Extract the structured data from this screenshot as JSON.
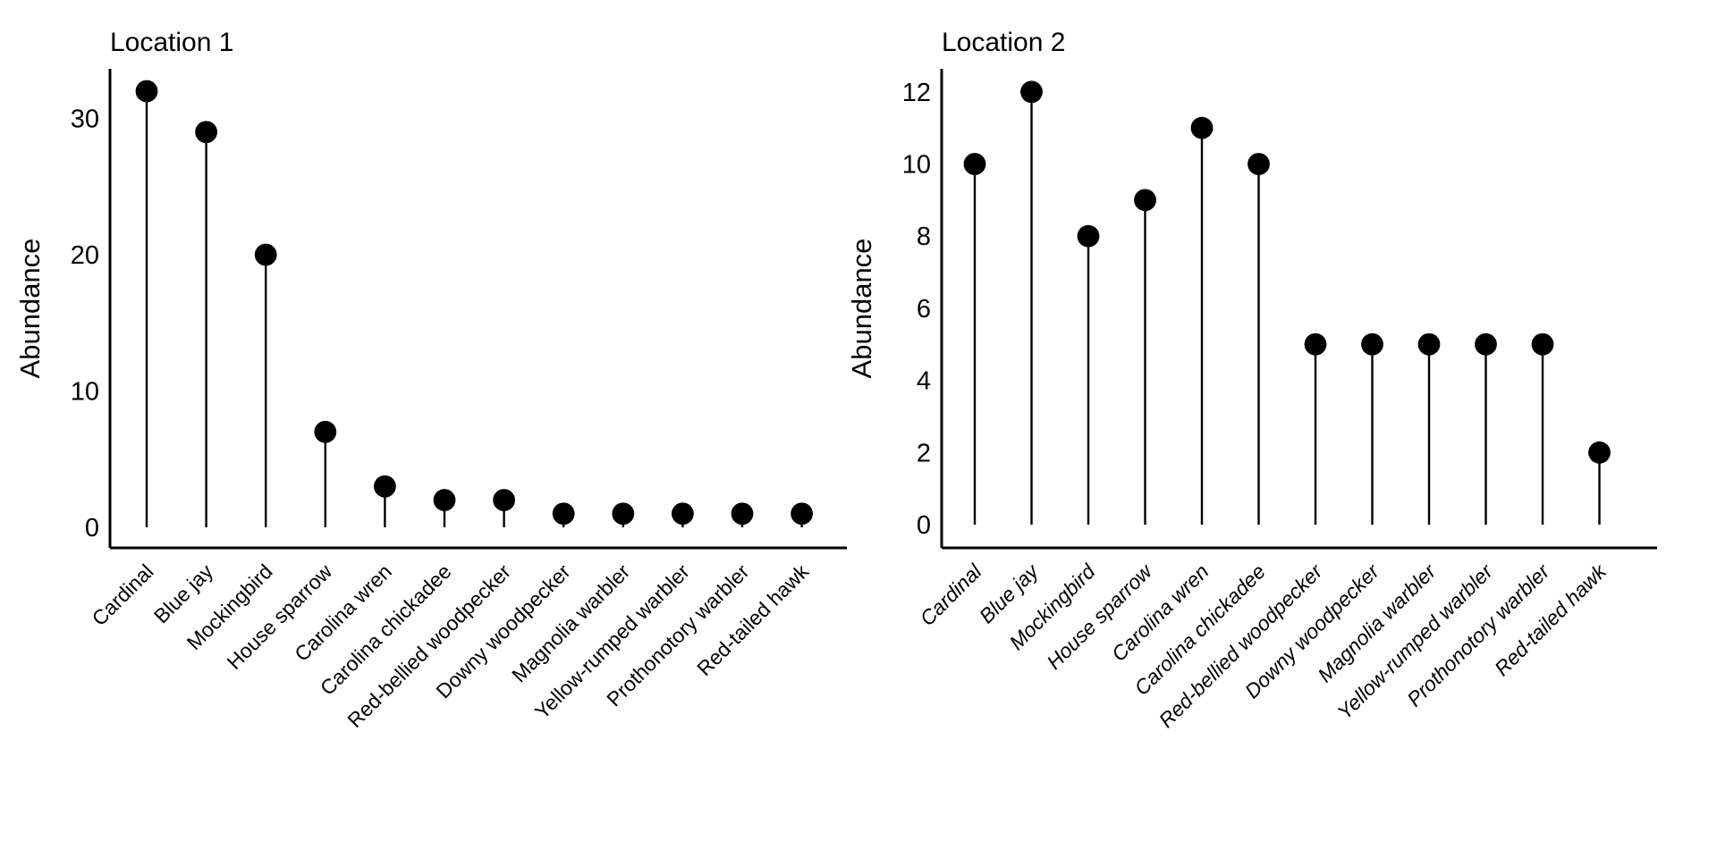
{
  "page": {
    "background_color": "#ffffff",
    "foreground_color": "#000000"
  },
  "chart_data": [
    {
      "type": "lollipop",
      "title": "Location 1",
      "xlabel": "",
      "ylabel": "Abundance",
      "categories": [
        "Cardinal",
        "Blue jay",
        "Mockingbird",
        "House sparrow",
        "Carolina wren",
        "Carolina chickadee",
        "Red-bellied woodpecker",
        "Downy woodpecker",
        "Magnolia warbler",
        "Yellow-rumped warbler",
        "Prothonotory warbler",
        "Red-tailed hawk"
      ],
      "values": [
        32,
        29,
        20,
        7,
        3,
        2,
        2,
        1,
        1,
        1,
        1,
        1
      ],
      "yticks": [
        0,
        10,
        20,
        30
      ],
      "ylim": [
        0,
        33.6
      ],
      "grid": false,
      "legend": "none",
      "marker": {
        "shape": "circle",
        "color": "#000000",
        "radius_px": 12.4
      },
      "xtick_label_rotation_deg": 45,
      "xtick_label_style": "normal"
    },
    {
      "type": "lollipop",
      "title": "Location 2",
      "xlabel": "",
      "ylabel": "Abundance",
      "categories": [
        "Cardinal",
        "Blue jay",
        "Mockingbird",
        "House sparrow",
        "Carolina wren",
        "Carolina chickadee",
        "Red-bellied woodpecker",
        "Downy woodpecker",
        "Magnolia warbler",
        "Yellow-rumped warbler",
        "Prothonotory warbler",
        "Red-tailed hawk"
      ],
      "values": [
        10,
        12,
        8,
        9,
        11,
        10,
        5,
        5,
        5,
        5,
        5,
        2
      ],
      "yticks": [
        0,
        2,
        4,
        6,
        8,
        10,
        12
      ],
      "ylim": [
        0,
        12.6
      ],
      "grid": false,
      "legend": "none",
      "marker": {
        "shape": "circle",
        "color": "#000000",
        "radius_px": 12.4
      },
      "xtick_label_rotation_deg": 45,
      "xtick_label_style": "italic"
    }
  ]
}
